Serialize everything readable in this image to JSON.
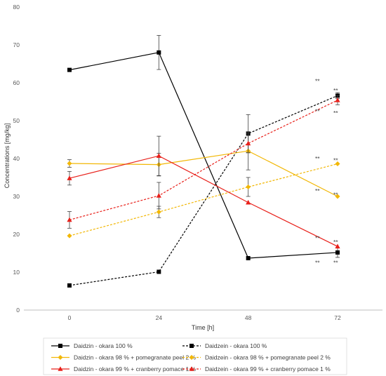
{
  "chart_data": {
    "type": "line",
    "xlabel": "Time [h]",
    "ylabel": "Concentrations [mg/kg]",
    "x": [
      0,
      24,
      48,
      72
    ],
    "xticks": [
      "0",
      "24",
      "48",
      "72"
    ],
    "ylim": [
      0,
      80
    ],
    "yticks": [
      "0",
      "10",
      "20",
      "30",
      "40",
      "50",
      "60",
      "70",
      "80"
    ],
    "grid": false,
    "legend_position": "bottom",
    "series": [
      {
        "name": "Daidzin - okara 100 %",
        "color": "#000000",
        "dash": false,
        "marker": "square",
        "values": [
          63.4,
          68.0,
          13.7,
          15.2
        ],
        "errors": [
          0,
          4.5,
          0,
          1.3
        ]
      },
      {
        "name": "Daidzein - okara 100 %",
        "color": "#000000",
        "dash": true,
        "marker": "square",
        "values": [
          6.5,
          10.1,
          46.6,
          56.6
        ],
        "errors": [
          0,
          0,
          5.0,
          0.8
        ]
      },
      {
        "name": "Daidzin - okara 98 % + pomegranate peel 2 %",
        "color": "#F2B705",
        "dash": false,
        "marker": "diamond",
        "values": [
          38.7,
          38.4,
          42.0,
          30.0
        ],
        "errors": [
          1.0,
          3.0,
          5.0,
          0
        ]
      },
      {
        "name": "Daidzein - okara 98 % + pomegranate peel 2 %",
        "color": "#F2B705",
        "dash": true,
        "marker": "diamond",
        "values": [
          19.6,
          25.9,
          32.5,
          38.6
        ],
        "errors": [
          0,
          1.5,
          2.5,
          0
        ]
      },
      {
        "name": "Daidzin - okara 99 % + cranberry pomace 1 %",
        "color": "#E8201A",
        "dash": false,
        "marker": "triangle",
        "values": [
          34.8,
          40.7,
          28.4,
          16.8
        ],
        "errors": [
          1.8,
          5.2,
          0,
          0
        ]
      },
      {
        "name": "Daidzein - okara 99 % + cranberry pomace 1 %",
        "color": "#E8201A",
        "dash": true,
        "marker": "triangle",
        "values": [
          23.8,
          30.2,
          44.0,
          55.4
        ],
        "errors": [
          2.2,
          3.5,
          2.5,
          1.2
        ]
      }
    ],
    "annotations": [
      {
        "text": "**",
        "x": 72,
        "y": 60.5,
        "side": "left"
      },
      {
        "text": "**",
        "x": 72,
        "y": 58.0,
        "side": "right"
      },
      {
        "text": "**",
        "x": 72,
        "y": 52.5,
        "side": "left"
      },
      {
        "text": "**",
        "x": 72,
        "y": 52.0,
        "side": "right"
      },
      {
        "text": "**",
        "x": 72,
        "y": 40.0,
        "side": "left"
      },
      {
        "text": "**",
        "x": 72,
        "y": 39.5,
        "side": "right"
      },
      {
        "text": "**",
        "x": 72,
        "y": 31.5,
        "side": "left"
      },
      {
        "text": "**",
        "x": 72,
        "y": 30.5,
        "side": "right"
      },
      {
        "text": "**",
        "x": 72,
        "y": 19.0,
        "side": "left"
      },
      {
        "text": "**",
        "x": 72,
        "y": 18.0,
        "side": "right"
      },
      {
        "text": "**",
        "x": 72,
        "y": 12.5,
        "side": "left"
      },
      {
        "text": "**",
        "x": 72,
        "y": 12.5,
        "side": "right"
      }
    ]
  }
}
